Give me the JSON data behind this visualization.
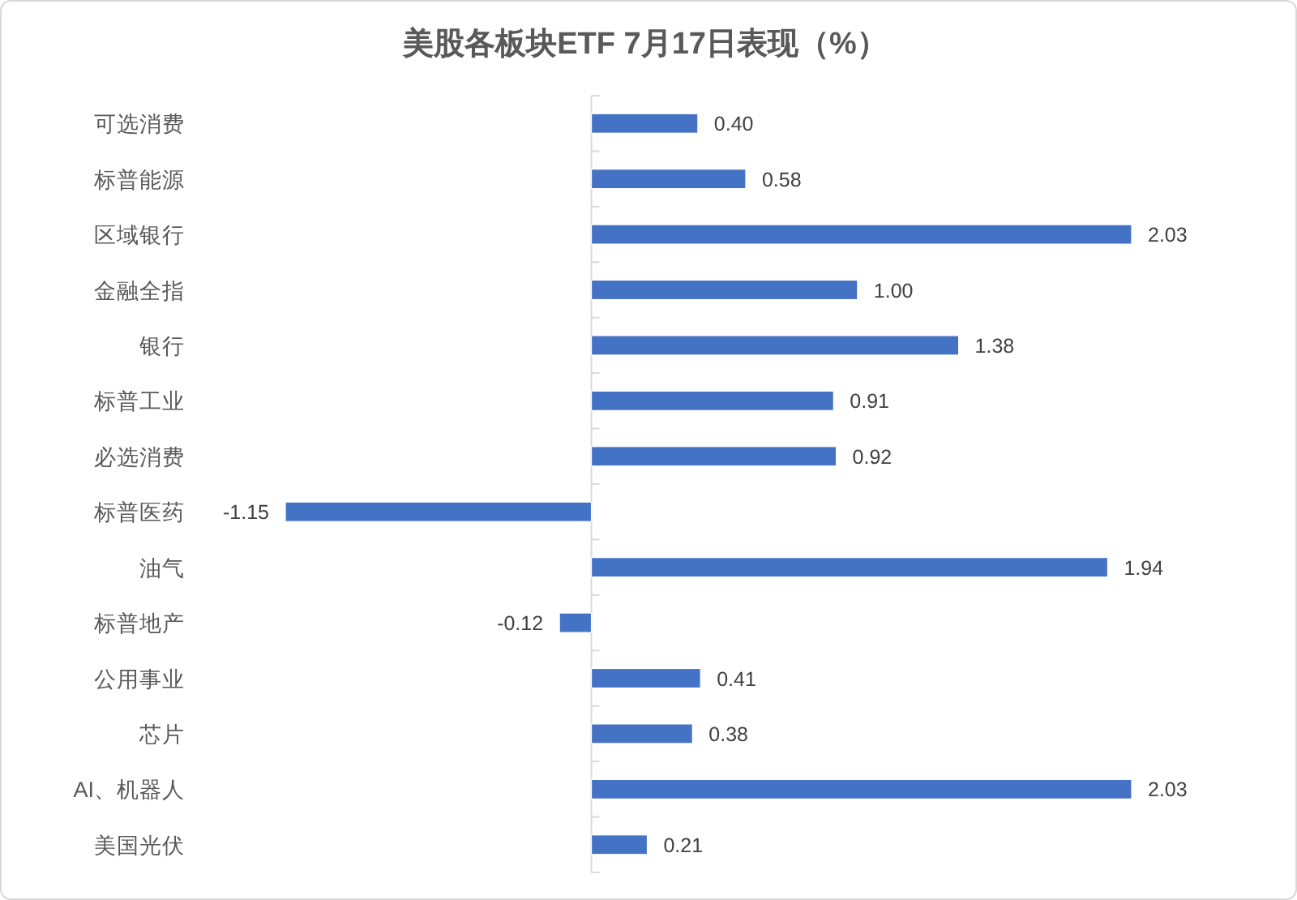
{
  "chart_data": {
    "type": "bar",
    "orientation": "horizontal",
    "title": "美股各板块ETF 7月17日表现（%）",
    "categories": [
      "可选消费",
      "标普能源",
      "区域银行",
      "金融全指",
      "银行",
      "标普工业",
      "必选消费",
      "标普医药",
      "油气",
      "标普地产",
      "公用事业",
      "芯片",
      "AI、机器人",
      "美国光伏"
    ],
    "values": [
      0.4,
      0.58,
      2.03,
      1.0,
      1.38,
      0.91,
      0.92,
      -1.15,
      1.94,
      -0.12,
      0.41,
      0.38,
      2.03,
      0.21
    ],
    "value_labels": [
      "0.40",
      "0.58",
      "2.03",
      "1.00",
      "1.38",
      "0.91",
      "0.92",
      "-1.15",
      "1.94",
      "-0.12",
      "0.41",
      "0.38",
      "2.03",
      "0.21"
    ],
    "color": "#4472c4",
    "tick_labels": "y"
  }
}
